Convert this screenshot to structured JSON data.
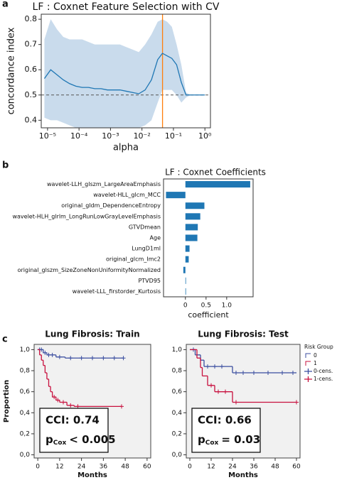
{
  "panel_labels": [
    "a",
    "b",
    "c"
  ],
  "chart_data": [
    {
      "type": "line_band",
      "title": "LF : Coxnet Feature Selection with CV",
      "xlabel": "alpha",
      "ylabel": "concordance index",
      "xscale": "log",
      "xlim": [
        6.3e-06,
        1.5
      ],
      "ylim": [
        0.37,
        0.82
      ],
      "xticks": [
        {
          "value": 1e-05,
          "label": "10⁻⁵"
        },
        {
          "value": 0.0001,
          "label": "10⁻⁴"
        },
        {
          "value": 0.001,
          "label": "10⁻³"
        },
        {
          "value": 0.01,
          "label": "10⁻²"
        },
        {
          "value": 0.1,
          "label": "10⁻¹"
        },
        {
          "value": 1,
          "label": "10⁰"
        }
      ],
      "yticks": [
        0.4,
        0.5,
        0.6,
        0.7,
        0.8
      ],
      "x": [
        7.94e-06,
        1.26e-05,
        2e-05,
        3.16e-05,
        5.01e-05,
        7.94e-05,
        0.000126,
        0.0002,
        0.000316,
        0.000501,
        0.000794,
        0.00126,
        0.002,
        0.00316,
        0.00501,
        0.00794,
        0.0126,
        0.02,
        0.0316,
        0.0447,
        0.0631,
        0.0891,
        0.126,
        0.178,
        0.251,
        0.355,
        0.501,
        0.708,
        1
      ],
      "values": [
        0.565,
        0.6,
        0.58,
        0.56,
        0.545,
        0.535,
        0.53,
        0.53,
        0.525,
        0.525,
        0.52,
        0.52,
        0.52,
        0.515,
        0.51,
        0.505,
        0.52,
        0.56,
        0.64,
        0.665,
        0.655,
        0.645,
        0.62,
        0.55,
        0.5,
        0.5,
        0.5,
        0.5,
        0.5
      ],
      "band_upper": [
        0.72,
        0.8,
        0.76,
        0.73,
        0.72,
        0.72,
        0.72,
        0.71,
        0.7,
        0.7,
        0.7,
        0.7,
        0.7,
        0.69,
        0.68,
        0.67,
        0.7,
        0.74,
        0.79,
        0.8,
        0.79,
        0.77,
        0.7,
        0.62,
        0.51,
        0.5,
        0.5,
        0.5,
        0.5
      ],
      "band_lower": [
        0.41,
        0.4,
        0.4,
        0.39,
        0.38,
        0.37,
        0.37,
        0.37,
        0.37,
        0.37,
        0.37,
        0.37,
        0.37,
        0.37,
        0.37,
        0.37,
        0.38,
        0.4,
        0.47,
        0.52,
        0.52,
        0.52,
        0.5,
        0.47,
        0.49,
        0.5,
        0.5,
        0.5,
        0.5
      ],
      "color": "#1f77b4",
      "band_color": "#c9dbec",
      "hline": 0.5,
      "vline": 0.045,
      "vline_color": "#ff7f0e"
    },
    {
      "type": "barh",
      "title": "LF : Coxnet Coefficients",
      "xlabel": "coefficient",
      "categories": [
        "wavelet-LLH_glszm_LargeAreaEmphasis",
        "wavelet-HLL_glcm_MCC",
        "original_gldm_DependenceEntropy",
        "wavelet-HLH_glrlm_LongRunLowGrayLevelEmphasis",
        "GTVDmean",
        "Age",
        "LungD1ml",
        "original_glcm_Imc2",
        "original_glszm_SizeZoneNonUniformityNormalized",
        "PTVD95",
        "wavelet-LLL_firstorder_Kurtosis"
      ],
      "values": [
        1.57,
        -0.47,
        0.46,
        0.36,
        0.3,
        0.29,
        0.1,
        0.08,
        -0.05,
        0.01,
        0.005
      ],
      "color": "#1f77b4",
      "xlim": [
        -0.53,
        1.64
      ],
      "xticks": [
        0,
        0.5,
        {
          "value": 1,
          "label": "1.0"
        }
      ]
    },
    {
      "type": "km",
      "title": "Lung Fibrosis: Train",
      "xlabel": "Months",
      "ylabel": "Proportion",
      "xlim": [
        -2,
        62
      ],
      "ylim": [
        -0.03,
        1.05
      ],
      "xticks": [
        0,
        12,
        24,
        36,
        48,
        60
      ],
      "yticks": [
        {
          "value": 0,
          "label": "0,0"
        },
        {
          "value": 0.2,
          "label": "0,2"
        },
        {
          "value": 0.4,
          "label": "0,4"
        },
        {
          "value": 0.6,
          "label": "0,6"
        },
        {
          "value": 0.8,
          "label": "0,8"
        },
        {
          "value": 1,
          "label": "1,0"
        }
      ],
      "series": [
        {
          "color": "#3b4ea0",
          "x": [
            0,
            3,
            5,
            10,
            15,
            47
          ],
          "values": [
            1,
            0.97,
            0.95,
            0.93,
            0.92,
            0.92
          ],
          "censored": [
            1,
            2,
            4,
            6,
            8,
            12,
            18,
            24,
            30,
            36,
            42,
            47
          ]
        },
        {
          "color": "#c8103e",
          "x": [
            0,
            1,
            2,
            3,
            4,
            5,
            6,
            7,
            8,
            10,
            12,
            16,
            20,
            46
          ],
          "values": [
            1,
            0.95,
            0.9,
            0.85,
            0.78,
            0.72,
            0.65,
            0.6,
            0.55,
            0.52,
            0.5,
            0.47,
            0.46,
            0.46
          ],
          "censored": [
            9,
            11,
            14,
            18,
            22,
            46
          ]
        }
      ],
      "annotation_box": {
        "cci": "CCI: 0.74",
        "p": "p",
        "p_sub": "Cox",
        "p_rest": "< 0.005"
      }
    },
    {
      "type": "km",
      "title": "Lung Fibrosis: Test",
      "xlabel": "Months",
      "xlim": [
        -2,
        62
      ],
      "ylim": [
        -0.03,
        1.05
      ],
      "xticks": [
        0,
        12,
        24,
        36,
        48,
        60
      ],
      "yticks": [
        {
          "value": 0,
          "label": "0,0"
        },
        {
          "value": 0.2,
          "label": "0,2"
        },
        {
          "value": 0.4,
          "label": "0,4"
        },
        {
          "value": 0.6,
          "label": "0,6"
        },
        {
          "value": 0.8,
          "label": "0,8"
        },
        {
          "value": 1,
          "label": "1,0"
        }
      ],
      "legend_title": "Risk Group",
      "legend": "right",
      "series": [
        {
          "name": "0",
          "censor_name": "0-cens.",
          "color": "#3b4ea0",
          "x": [
            0,
            3,
            6,
            8,
            24,
            60
          ],
          "values": [
            1,
            0.95,
            0.9,
            0.84,
            0.78,
            0.78
          ],
          "censored": [
            2,
            10,
            14,
            18,
            26,
            30,
            36,
            44,
            52,
            58
          ]
        },
        {
          "name": "1",
          "censor_name": "1-cens.",
          "color": "#c8103e",
          "x": [
            0,
            4,
            6,
            7,
            10,
            14,
            24,
            60
          ],
          "values": [
            1,
            0.92,
            0.83,
            0.75,
            0.66,
            0.6,
            0.5,
            0.5
          ],
          "censored": [
            12,
            16,
            20,
            26,
            60
          ]
        }
      ],
      "annotation_box": {
        "cci": "CCI: 0.66",
        "p": "p",
        "p_sub": "Cox",
        "p_rest": "= 0.03"
      }
    }
  ]
}
